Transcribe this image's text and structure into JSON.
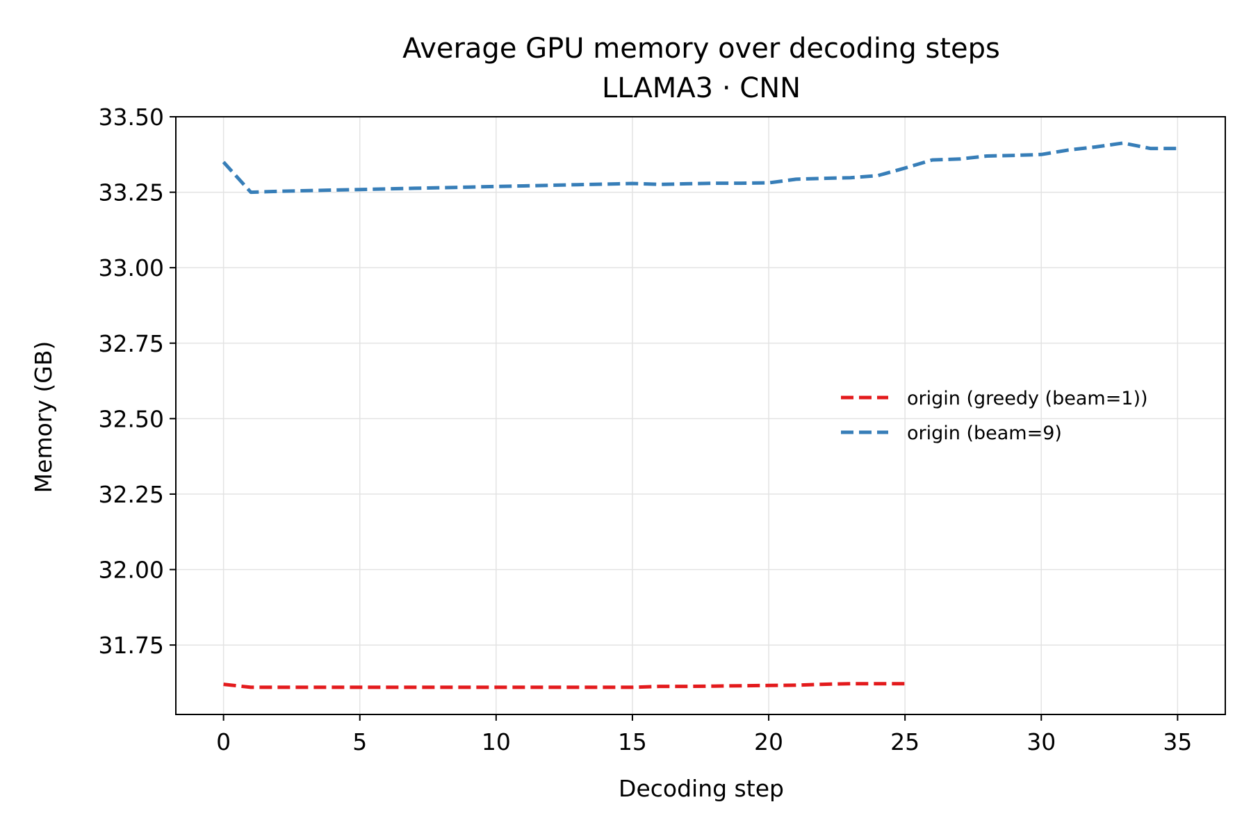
{
  "chart_data": {
    "type": "line",
    "title": "Average GPU memory over decoding steps",
    "subtitle": "LLAMA3 · CNN",
    "xlabel": "Decoding step",
    "ylabel": "Memory (GB)",
    "xlim": [
      -1.75,
      36.75
    ],
    "ylim": [
      31.52,
      33.5
    ],
    "xticks": [
      0,
      5,
      10,
      15,
      20,
      25,
      30,
      35
    ],
    "yticks": [
      31.75,
      32.0,
      32.25,
      32.5,
      32.75,
      33.0,
      33.25,
      33.5
    ],
    "xtick_labels": [
      "0",
      "5",
      "10",
      "15",
      "20",
      "25",
      "30",
      "35"
    ],
    "ytick_labels": [
      "31.75",
      "32.00",
      "32.25",
      "32.50",
      "32.75",
      "33.00",
      "33.25",
      "33.50"
    ],
    "grid": true,
    "legend_position": "center-right",
    "series": [
      {
        "name": "origin (greedy (beam=1))",
        "color": "#e31a1c",
        "line_style": "dashed",
        "x": [
          0,
          1,
          2,
          3,
          4,
          5,
          6,
          7,
          8,
          9,
          10,
          11,
          12,
          13,
          14,
          15,
          16,
          17,
          18,
          19,
          20,
          21,
          22,
          23,
          24,
          25
        ],
        "y": [
          31.62,
          31.61,
          31.61,
          31.61,
          31.61,
          31.61,
          31.61,
          31.61,
          31.61,
          31.61,
          31.61,
          31.61,
          31.61,
          31.61,
          31.61,
          31.61,
          31.613,
          31.613,
          31.614,
          31.615,
          31.616,
          31.617,
          31.62,
          31.622,
          31.622,
          31.622
        ]
      },
      {
        "name": "origin (beam=9)",
        "color": "#377eb8",
        "line_style": "dashed",
        "x": [
          0,
          1,
          2,
          3,
          4,
          5,
          6,
          7,
          8,
          9,
          10,
          11,
          12,
          13,
          14,
          15,
          16,
          17,
          18,
          19,
          20,
          21,
          22,
          23,
          24,
          25,
          26,
          27,
          28,
          29,
          30,
          31,
          32,
          33,
          34,
          35
        ],
        "y": [
          33.35,
          33.25,
          33.253,
          33.255,
          33.257,
          33.259,
          33.261,
          33.263,
          33.265,
          33.267,
          33.269,
          33.271,
          33.273,
          33.275,
          33.277,
          33.279,
          33.276,
          33.278,
          33.28,
          33.28,
          33.281,
          33.293,
          33.296,
          33.298,
          33.305,
          33.33,
          33.357,
          33.36,
          33.37,
          33.372,
          33.375,
          33.39,
          33.4,
          33.413,
          33.395,
          33.395
        ]
      }
    ]
  }
}
